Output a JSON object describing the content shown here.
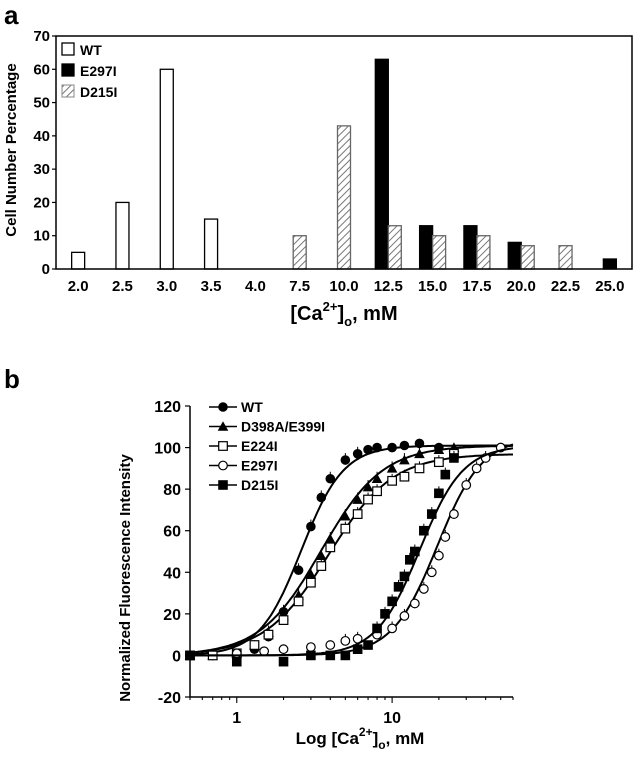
{
  "chart_data": [
    {
      "panel_label": "a",
      "type": "bar",
      "xlabel_main": "[Ca",
      "xlabel_sup": "2+",
      "xlabel_close": "]",
      "xlabel_sub": "o",
      "xlabel_tail": ", mM",
      "ylabel": "Cell Number Percentage",
      "ylim": [
        0,
        70
      ],
      "yticks": [
        "0",
        "10",
        "20",
        "30",
        "40",
        "50",
        "60",
        "70"
      ],
      "categories": [
        "2.0",
        "2.5",
        "3.0",
        "3.5",
        "4.0",
        "7.5",
        "10.0",
        "12.5",
        "15.0",
        "17.5",
        "20.0",
        "22.5",
        "25.0"
      ],
      "legend_position": "top-left",
      "series": [
        {
          "name": "WT",
          "style": "open",
          "color": "#ffffff",
          "values": [
            5,
            20,
            60,
            15,
            0,
            0,
            0,
            0,
            0,
            0,
            0,
            0,
            0
          ]
        },
        {
          "name": "E297I",
          "style": "filled",
          "color": "#000000",
          "values": [
            0,
            0,
            0,
            0,
            0,
            0,
            0,
            63,
            13,
            13,
            8,
            0,
            3
          ]
        },
        {
          "name": "D215I",
          "style": "hatched",
          "color": "#9a9a9a",
          "values": [
            0,
            0,
            0,
            0,
            0,
            10,
            43,
            13,
            10,
            10,
            7,
            7,
            0
          ]
        }
      ]
    },
    {
      "panel_label": "b",
      "type": "line",
      "xlabel_main": "Log [Ca",
      "xlabel_sup": "2+",
      "xlabel_close": "]",
      "xlabel_sub": "o",
      "xlabel_tail": ", mM",
      "ylabel": "Normalized Fluorescence Intensity",
      "x_scale": "log",
      "xlim": [
        0.5,
        60
      ],
      "ylim": [
        -20,
        120
      ],
      "xticks": [
        {
          "value": 1,
          "label": "1"
        },
        {
          "value": 10,
          "label": "10"
        }
      ],
      "yticks": [
        "-20",
        "0",
        "20",
        "40",
        "60",
        "80",
        "100",
        "120"
      ],
      "legend_position": "top-left",
      "series": [
        {
          "name": "WT",
          "marker": "filled-circle",
          "x": [
            0.5,
            0.7,
            1.0,
            1.3,
            1.6,
            2.0,
            2.5,
            3.0,
            3.5,
            4.0,
            5.0,
            6.0,
            7.0,
            8.0,
            10.0,
            12.0,
            15.0,
            20.0
          ],
          "y": [
            0,
            0,
            1,
            3,
            9,
            21,
            41,
            62,
            76,
            85,
            94,
            97,
            99,
            100,
            100,
            101,
            102,
            100
          ]
        },
        {
          "name": "D398A/E399I",
          "marker": "filled-triangle",
          "x": [
            0.5,
            0.7,
            1.0,
            1.3,
            1.6,
            2.0,
            2.5,
            3.0,
            3.5,
            4.0,
            5.0,
            6.0,
            7.0,
            8.0,
            10.0,
            12.0,
            15.0,
            20.0,
            25.0
          ],
          "y": [
            0,
            0,
            1,
            5,
            11,
            19,
            29,
            39,
            48,
            56,
            67,
            75,
            81,
            85,
            90,
            94,
            97,
            99,
            100
          ]
        },
        {
          "name": "E224I",
          "marker": "open-square",
          "x": [
            0.5,
            0.7,
            1.0,
            1.3,
            1.6,
            2.0,
            2.5,
            3.0,
            3.5,
            4.0,
            5.0,
            6.0,
            7.0,
            8.0,
            10.0,
            12.0,
            15.0,
            20.0,
            25.0
          ],
          "y": [
            0,
            0,
            1,
            5,
            10,
            17,
            26,
            35,
            43,
            52,
            61,
            68,
            75,
            79,
            84,
            86,
            90,
            93,
            97
          ]
        },
        {
          "name": "E297I",
          "marker": "open-circle",
          "x": [
            0.5,
            1.0,
            1.5,
            2.0,
            3.0,
            4.0,
            5.0,
            6.0,
            8.0,
            10.0,
            12.0,
            14.0,
            16.0,
            18.0,
            20.0,
            22.0,
            25.0,
            30.0,
            35.0,
            40.0,
            50.0
          ],
          "y": [
            0,
            1,
            2,
            3,
            4,
            5,
            7,
            8,
            10,
            13,
            19,
            25,
            32,
            40,
            48,
            57,
            68,
            82,
            90,
            95,
            100
          ]
        },
        {
          "name": "D215I",
          "marker": "filled-square",
          "x": [
            0.5,
            1.0,
            2.0,
            3.0,
            4.0,
            5.0,
            6.0,
            7.0,
            8.0,
            9.0,
            10.0,
            11.0,
            12.0,
            13.0,
            14.0,
            16.0,
            18.0,
            20.0,
            22.0,
            25.0
          ],
          "y": [
            0,
            -3,
            -3,
            0,
            0,
            0,
            3,
            5,
            13,
            20,
            26,
            33,
            38,
            46,
            50,
            60,
            68,
            78,
            87,
            95
          ]
        }
      ]
    }
  ]
}
